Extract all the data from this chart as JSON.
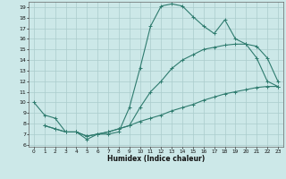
{
  "xlabel": "Humidex (Indice chaleur)",
  "bg_color": "#cce8e8",
  "line_color": "#2e7b6e",
  "grid_color": "#aacccc",
  "xlim": [
    -0.5,
    23.5
  ],
  "ylim": [
    5.8,
    19.5
  ],
  "xticks": [
    0,
    1,
    2,
    3,
    4,
    5,
    6,
    7,
    8,
    9,
    10,
    11,
    12,
    13,
    14,
    15,
    16,
    17,
    18,
    19,
    20,
    21,
    22,
    23
  ],
  "yticks": [
    6,
    7,
    8,
    9,
    10,
    11,
    12,
    13,
    14,
    15,
    16,
    17,
    18,
    19
  ],
  "curve1_x": [
    0,
    1,
    2,
    3,
    4,
    5,
    6,
    7,
    8,
    9,
    10,
    11,
    12,
    13,
    14,
    15,
    16,
    17,
    18,
    19,
    20,
    21,
    22,
    23
  ],
  "curve1_y": [
    10.0,
    8.8,
    8.5,
    7.2,
    7.2,
    6.5,
    7.0,
    7.0,
    7.2,
    9.5,
    13.2,
    17.2,
    19.1,
    19.3,
    19.1,
    18.1,
    17.2,
    16.5,
    17.8,
    16.0,
    15.5,
    14.2,
    12.0,
    11.5
  ],
  "curve2_x": [
    1,
    2,
    3,
    4,
    5,
    6,
    7,
    8,
    9,
    10,
    11,
    12,
    13,
    14,
    15,
    16,
    17,
    18,
    19,
    20,
    21,
    22,
    23
  ],
  "curve2_y": [
    7.8,
    7.5,
    7.2,
    7.2,
    6.8,
    7.0,
    7.2,
    7.5,
    7.8,
    8.2,
    8.5,
    8.8,
    9.2,
    9.5,
    9.8,
    10.2,
    10.5,
    10.8,
    11.0,
    11.2,
    11.4,
    11.5,
    11.5
  ],
  "curve3_x": [
    1,
    2,
    3,
    4,
    5,
    6,
    7,
    8,
    9,
    10,
    11,
    12,
    13,
    14,
    15,
    16,
    17,
    18,
    19,
    20,
    21,
    22,
    23
  ],
  "curve3_y": [
    7.8,
    7.5,
    7.2,
    7.2,
    6.8,
    7.0,
    7.2,
    7.5,
    7.8,
    9.5,
    11.0,
    12.0,
    13.2,
    14.0,
    14.5,
    15.0,
    15.2,
    15.4,
    15.5,
    15.5,
    15.3,
    14.2,
    12.0
  ]
}
